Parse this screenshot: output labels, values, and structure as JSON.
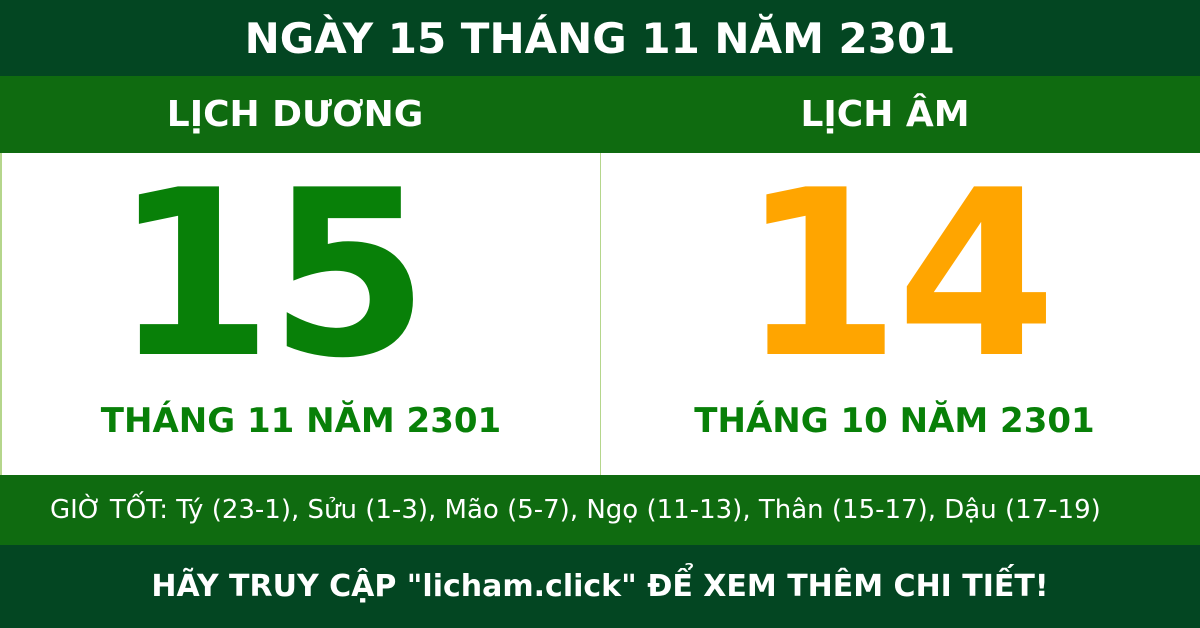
{
  "title": "NGÀY 15 THÁNG 11 NĂM 2301",
  "solar": {
    "label": "LỊCH DƯƠNG",
    "day": "15",
    "month_year": "THÁNG 11 NĂM 2301"
  },
  "lunar": {
    "label": "LỊCH ÂM",
    "day": "14",
    "month_year": "THÁNG 10 NĂM 2301"
  },
  "good_hours": "GIỜ TỐT: Tý (23-1), Sửu (1-3), Mão (5-7), Ngọ (11-13), Thân (15-17), Dậu (17-19)",
  "footer": "HÃY TRUY CẬP \"licham.click\" ĐỂ XEM THÊM CHI TIẾT!",
  "colors": {
    "dark_green": "#034622",
    "green": "#0f6b10",
    "solar_day": "#088008",
    "lunar_day": "#ffa500"
  }
}
